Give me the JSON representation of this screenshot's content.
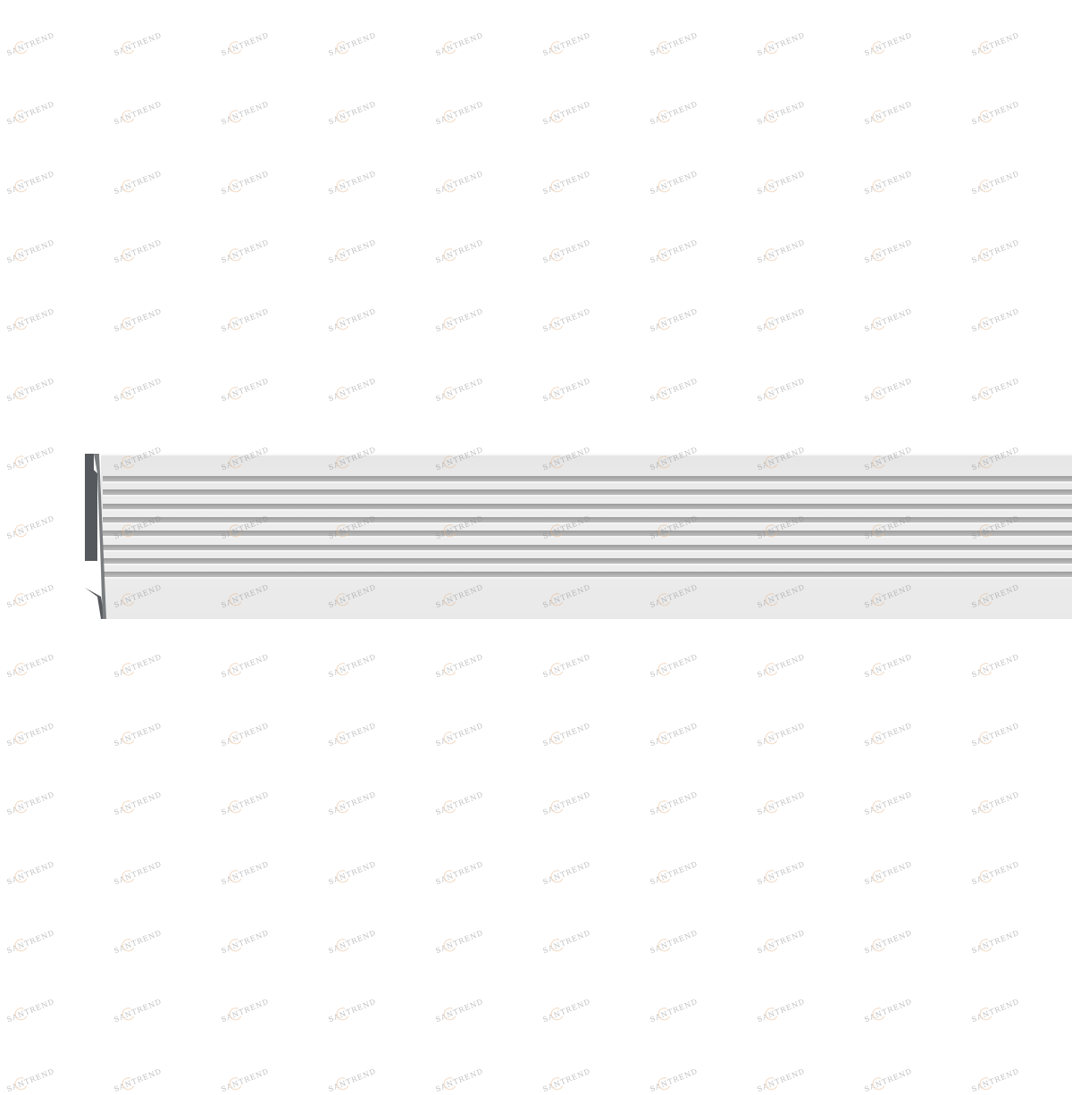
{
  "product": {
    "type": "fluted molding profile",
    "groove_count": 8,
    "colors": {
      "face": "#e8e8e8",
      "groove": "#a8a8a8",
      "profile_edge": "#55585c",
      "background": "#ffffff"
    }
  },
  "watermark": {
    "text": "SANTREND",
    "accent": "#e8b78a"
  }
}
